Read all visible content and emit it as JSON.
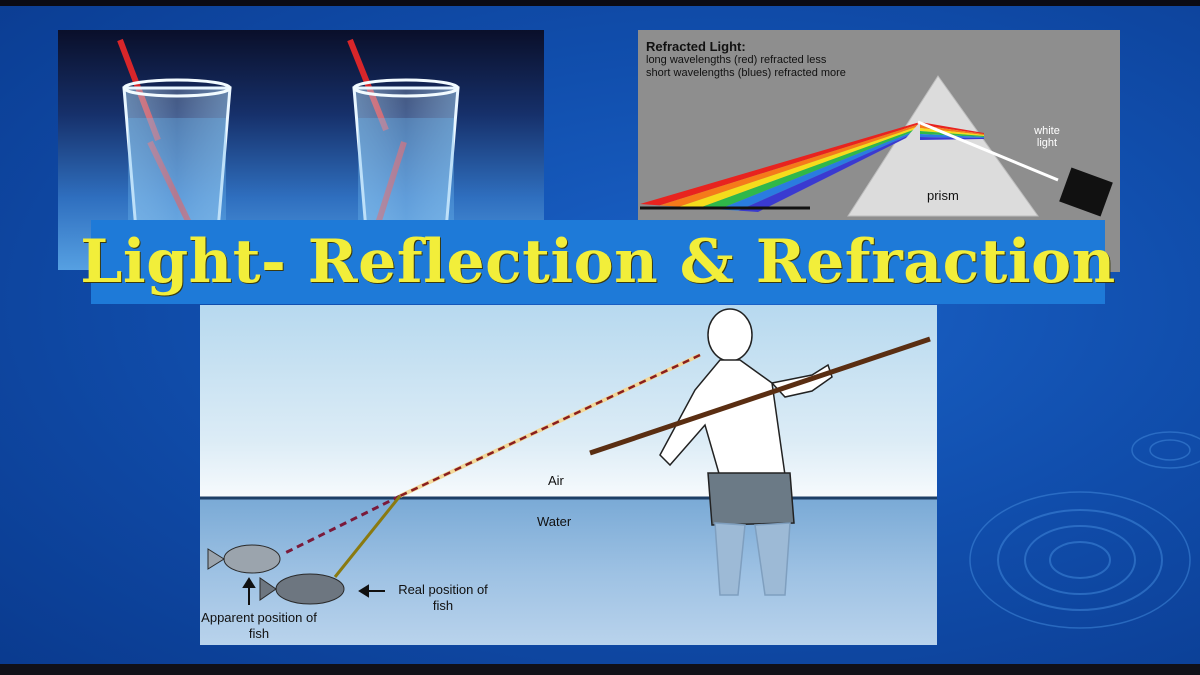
{
  "slide": {
    "title": "Light- Reflection & Refraction",
    "colors": {
      "background": "#114fae",
      "title_banner": "#1e7ad8",
      "title_text": "#f2ee3a",
      "straw": "#d8262a",
      "prism_background": "#8e8e8e"
    }
  },
  "prism_panel": {
    "heading": "Refracted Light:",
    "line1": "long wavelengths (red) refracted less",
    "line2": "short wavelengths (blues) refracted more",
    "prism_label": "prism",
    "white_light_label": "white light",
    "spectrum_colors": [
      "#e8231f",
      "#f57a1a",
      "#f5dc1c",
      "#2fb84a",
      "#2a7ce0",
      "#3a3ad0"
    ]
  },
  "fish_panel": {
    "air_label": "Air",
    "water_label": "Water",
    "real_position_label": "Real position of fish",
    "apparent_position_label": "Apparent position of fish"
  },
  "icons": [
    "glass-with-straw-icon",
    "prism-icon",
    "flashlight-icon",
    "fisherman-icon",
    "fish-icon",
    "arrow-up-icon",
    "arrow-left-icon"
  ]
}
